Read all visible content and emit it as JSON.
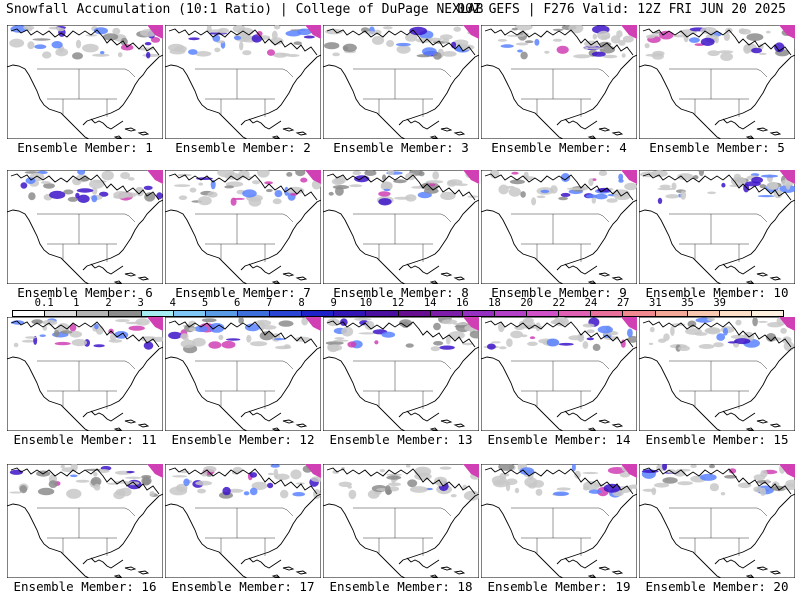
{
  "header": {
    "left": "Snowfall Accumulation (10:1 Ratio) | College of DuPage NEXLAB",
    "right": "00Z GEFS | F276 Valid: 12Z FRI JUN 20 2025"
  },
  "members": [
    {
      "label": "Ensemble Member: 1"
    },
    {
      "label": "Ensemble Member: 2"
    },
    {
      "label": "Ensemble Member: 3"
    },
    {
      "label": "Ensemble Member: 4"
    },
    {
      "label": "Ensemble Member: 5"
    },
    {
      "label": "Ensemble Member: 6"
    },
    {
      "label": "Ensemble Member: 7"
    },
    {
      "label": "Ensemble Member: 8"
    },
    {
      "label": "Ensemble Member: 9"
    },
    {
      "label": "Ensemble Member: 10"
    },
    {
      "label": "Ensemble Member: 11"
    },
    {
      "label": "Ensemble Member: 12"
    },
    {
      "label": "Ensemble Member: 13"
    },
    {
      "label": "Ensemble Member: 14"
    },
    {
      "label": "Ensemble Member: 15"
    },
    {
      "label": "Ensemble Member: 16"
    },
    {
      "label": "Ensemble Member: 17"
    },
    {
      "label": "Ensemble Member: 18"
    },
    {
      "label": "Ensemble Member: 19"
    },
    {
      "label": "Ensemble Member: 20"
    }
  ],
  "colorbar": {
    "labels": [
      "0.1",
      "1",
      "2",
      "3",
      "4",
      "5",
      "6",
      "7",
      "8",
      "9",
      "10",
      "12",
      "14",
      "16",
      "18",
      "20",
      "22",
      "24",
      "27",
      "31",
      "35",
      "39"
    ],
    "colors": [
      "#ffffff",
      "#dcdcdc",
      "#b4b4b4",
      "#8c8c8c",
      "#a6ecf3",
      "#7fc8f5",
      "#5a9be8",
      "#3c6edc",
      "#2a44d4",
      "#1e20c8",
      "#3214b4",
      "#4b0fa0",
      "#660d90",
      "#7d1ca8",
      "#9630c0",
      "#b440c8",
      "#d050c8",
      "#e060b4",
      "#e8709a",
      "#f08a90",
      "#f4a898",
      "#f8c8b0",
      "#fce0c8",
      "#fff0e0"
    ]
  },
  "map_colors": {
    "snow_light": "#c8c8c8",
    "snow_mid": "#8c8c8c",
    "snow_blue": "#5a82ff",
    "snow_purple": "#3c14c8",
    "snow_magenta": "#d040b4"
  }
}
